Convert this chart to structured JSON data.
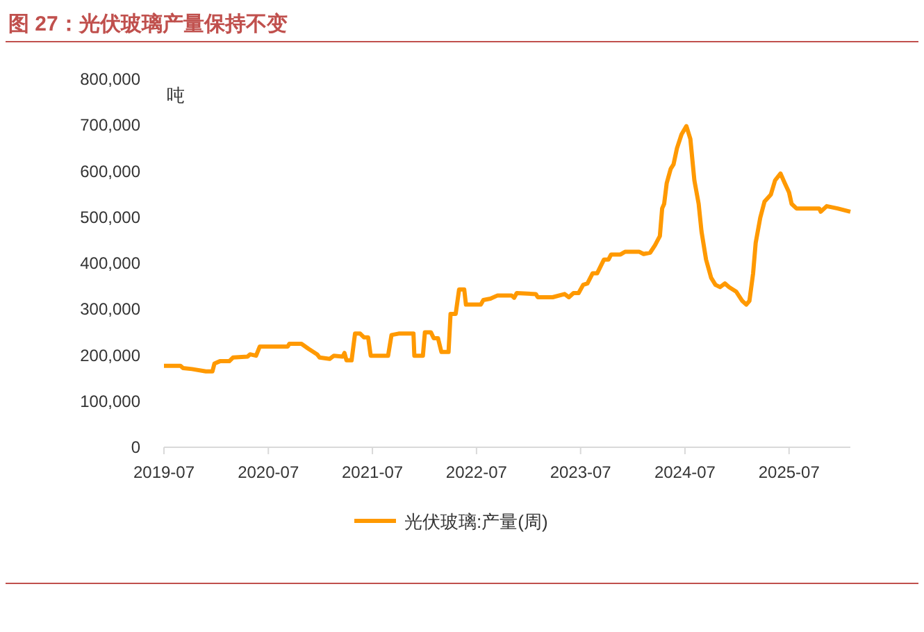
{
  "chart_data": {
    "type": "line",
    "title": "图 27：光伏玻璃产量保持不变",
    "ylabel": "吨",
    "x": [
      "2019-07-01",
      "2019-08-28",
      "2019-09-06",
      "2019-10-07",
      "2019-11-25",
      "2019-12-18",
      "2019-12-25",
      "2020-01-13",
      "2020-02-15",
      "2020-02-28",
      "2020-04-19",
      "2020-04-28",
      "2020-05-19",
      "2020-06-01",
      "2020-09-07",
      "2020-09-13",
      "2020-10-25",
      "2020-11-19",
      "2020-12-19",
      "2020-12-28",
      "2021-02-01",
      "2021-02-16",
      "2021-03-19",
      "2021-03-25",
      "2021-04-01",
      "2021-04-19",
      "2021-05-01",
      "2021-05-19",
      "2021-06-01",
      "2021-06-16",
      "2021-06-25",
      "2021-08-25",
      "2021-09-06",
      "2021-10-01",
      "2021-11-22",
      "2021-11-25",
      "2021-12-25",
      "2022-01-01",
      "2022-01-22",
      "2022-02-01",
      "2022-02-16",
      "2022-02-28",
      "2022-03-25",
      "2022-04-01",
      "2022-04-19",
      "2022-05-01",
      "2022-05-19",
      "2022-05-25",
      "2022-07-16",
      "2022-07-25",
      "2022-08-19",
      "2022-09-13",
      "2022-11-01",
      "2022-11-10",
      "2022-11-19",
      "2023-01-25",
      "2023-02-01",
      "2023-03-25",
      "2023-05-06",
      "2023-05-21",
      "2023-06-06",
      "2023-06-24",
      "2023-07-10",
      "2023-07-25",
      "2023-08-12",
      "2023-08-28",
      "2023-09-21",
      "2023-10-07",
      "2023-10-16",
      "2023-11-18",
      "2023-12-04",
      "2024-01-22",
      "2024-02-07",
      "2024-03-01",
      "2024-03-18",
      "2024-04-04",
      "2024-04-12",
      "2024-04-19",
      "2024-04-28",
      "2024-05-12",
      "2024-05-22",
      "2024-06-03",
      "2024-06-19",
      "2024-07-06",
      "2024-07-20",
      "2024-08-03",
      "2024-08-18",
      "2024-08-28",
      "2024-09-13",
      "2024-10-01",
      "2024-10-16",
      "2024-11-01",
      "2024-11-18",
      "2024-12-03",
      "2024-12-28",
      "2025-01-18",
      "2025-02-01",
      "2025-02-12",
      "2025-02-25",
      "2025-03-06",
      "2025-03-22",
      "2025-04-06",
      "2025-04-28",
      "2025-05-13",
      "2025-06-01",
      "2025-06-16",
      "2025-07-01",
      "2025-07-10",
      "2025-07-27",
      "2025-10-15",
      "2025-10-20",
      "2025-11-10",
      "2025-12-18",
      "2026-02-01"
    ],
    "series": [
      {
        "name": "光伏玻璃:产量(周)",
        "color": "#ff9900",
        "values": [
          177000,
          177000,
          172000,
          170000,
          165000,
          165000,
          182000,
          187000,
          187000,
          195000,
          197000,
          202000,
          199000,
          219000,
          219000,
          225000,
          225000,
          214000,
          202000,
          195000,
          192000,
          199000,
          197000,
          205000,
          189000,
          189000,
          247000,
          247000,
          239000,
          239000,
          199000,
          199000,
          244000,
          247000,
          247000,
          199000,
          199000,
          250000,
          250000,
          237000,
          237000,
          207000,
          207000,
          290000,
          290000,
          343000,
          343000,
          310000,
          310000,
          320000,
          323000,
          330000,
          330000,
          325000,
          335000,
          333000,
          326000,
          326000,
          333000,
          326000,
          335000,
          335000,
          353000,
          356000,
          378000,
          378000,
          408000,
          408000,
          419000,
          419000,
          425000,
          425000,
          420000,
          423000,
          439000,
          459000,
          519000,
          529000,
          574000,
          605000,
          615000,
          650000,
          680000,
          698000,
          670000,
          580000,
          529000,
          469000,
          408000,
          368000,
          353000,
          348000,
          356000,
          348000,
          338000,
          318000,
          310000,
          318000,
          378000,
          444000,
          499000,
          534000,
          549000,
          580000,
          595000,
          574000,
          554000,
          529000,
          519000,
          519000,
          512000,
          524000,
          519000,
          512000
        ]
      }
    ],
    "xlim": [
      "2019-07-01",
      "2026-02-01"
    ],
    "xticks": [
      {
        "value": "2019-07-01",
        "label": "2019-07"
      },
      {
        "value": "2020-07-01",
        "label": "2020-07"
      },
      {
        "value": "2021-07-01",
        "label": "2021-07"
      },
      {
        "value": "2022-07-01",
        "label": "2022-07"
      },
      {
        "value": "2023-07-01",
        "label": "2023-07"
      },
      {
        "value": "2024-07-01",
        "label": "2024-07"
      },
      {
        "value": "2025-07-01",
        "label": "2025-07"
      }
    ],
    "ylim": [
      0,
      800000
    ],
    "yticks": [
      0,
      {
        "value": 100000,
        "label": "100,000"
      },
      {
        "value": 200000,
        "label": "200,000"
      },
      {
        "value": 300000,
        "label": "300,000"
      },
      {
        "value": 400000,
        "label": "400,000"
      },
      {
        "value": 500000,
        "label": "500,000"
      },
      {
        "value": 600000,
        "label": "600,000"
      },
      {
        "value": 700000,
        "label": "700,000"
      },
      {
        "value": 800000,
        "label": "800,000"
      }
    ],
    "grid": false,
    "legend": "bottom",
    "marker": "none",
    "line_style": "solid"
  }
}
